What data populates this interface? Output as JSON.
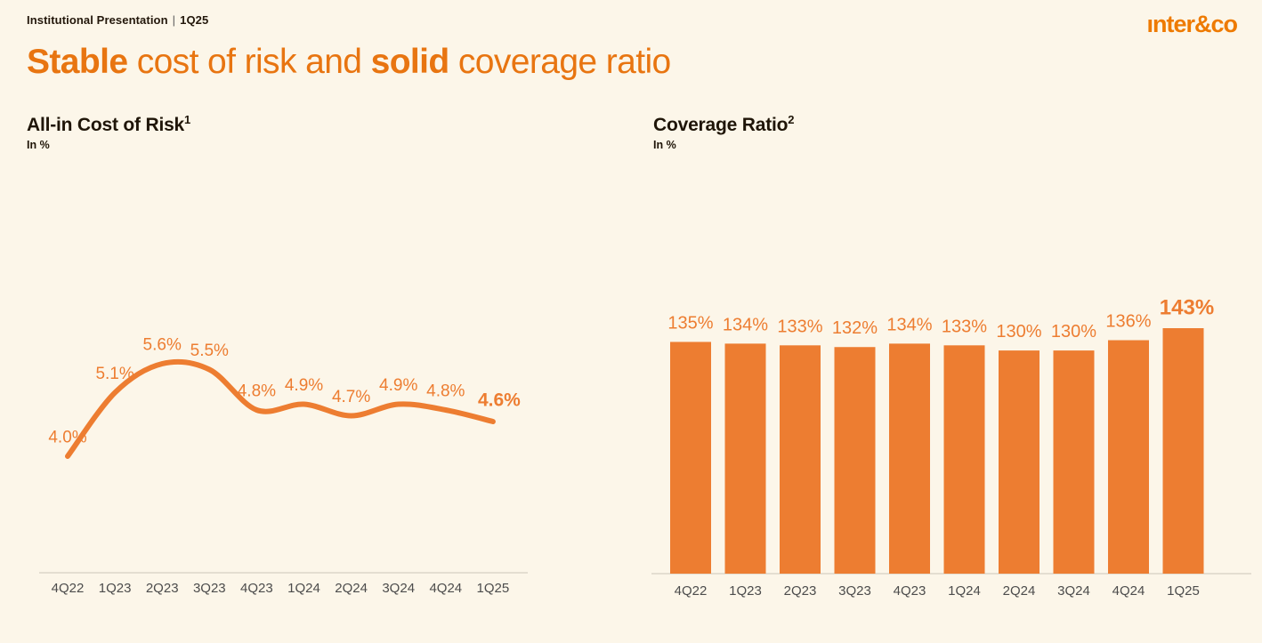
{
  "meta": {
    "eyebrow_left": "Institutional Presentation",
    "eyebrow_sep": "|",
    "eyebrow_right": "1Q25",
    "logo": "ınter&co"
  },
  "title": {
    "parts": [
      {
        "text": "Stable",
        "bold": true
      },
      {
        "text": " cost of risk and ",
        "bold": false
      },
      {
        "text": "solid",
        "bold": true
      },
      {
        "text": " coverage ratio",
        "bold": false
      }
    ]
  },
  "colors": {
    "background": "#FCF6E9",
    "title_orange": "#E87511",
    "chart_orange": "#ED7D31",
    "text_dark": "#1F1508",
    "axis_text": "#4C4C4C",
    "axis_line": "#DBD6C9"
  },
  "chart_data": [
    {
      "type": "line",
      "title": "All-in Cost of Risk",
      "title_sup": "1",
      "subtitle": "In %",
      "categories": [
        "4Q22",
        "1Q23",
        "2Q23",
        "3Q23",
        "4Q23",
        "1Q24",
        "2Q24",
        "3Q24",
        "4Q24",
        "1Q25"
      ],
      "values": [
        4.0,
        5.1,
        5.6,
        5.5,
        4.8,
        4.9,
        4.7,
        4.9,
        4.8,
        4.6
      ],
      "labels": [
        "4.0%",
        "5.1%",
        "5.6%",
        "5.5%",
        "4.8%",
        "4.9%",
        "4.7%",
        "4.9%",
        "4.8%",
        "4.6%"
      ],
      "highlight_last": true,
      "line_color": "#ED7D31",
      "label_color": "#ED7D31",
      "ylim": [
        3.4,
        6.1
      ],
      "grid": false,
      "legend": "none",
      "xlabel": "",
      "ylabel": ""
    },
    {
      "type": "bar",
      "title": "Coverage Ratio",
      "title_sup": "2",
      "subtitle": "In %",
      "categories": [
        "4Q22",
        "1Q23",
        "2Q23",
        "3Q23",
        "4Q23",
        "1Q24",
        "2Q24",
        "3Q24",
        "4Q24",
        "1Q25"
      ],
      "values": [
        135,
        134,
        133,
        132,
        134,
        133,
        130,
        130,
        136,
        143
      ],
      "labels": [
        "135%",
        "134%",
        "133%",
        "132%",
        "134%",
        "133%",
        "130%",
        "130%",
        "136%",
        "143%"
      ],
      "highlight_last": true,
      "bar_color": "#ED7D31",
      "label_color": "#ED7D31",
      "ylim": [
        0,
        150
      ],
      "grid": false,
      "legend": "none",
      "xlabel": "",
      "ylabel": ""
    }
  ]
}
